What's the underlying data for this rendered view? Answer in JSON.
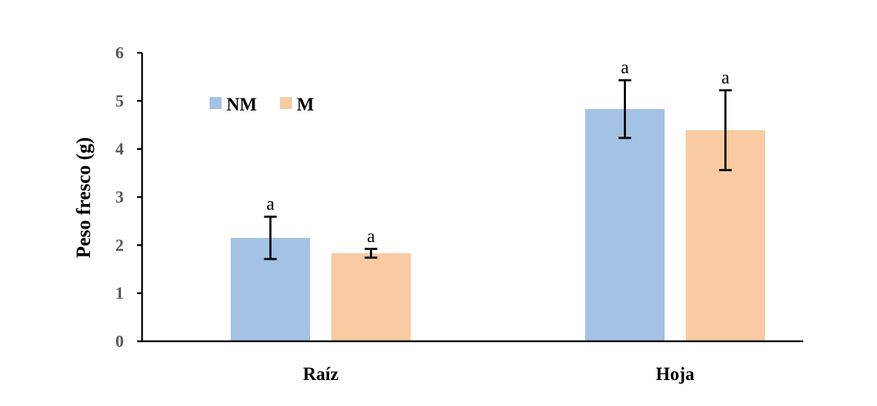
{
  "chart_data": {
    "type": "bar",
    "categories": [
      "Raíz",
      "Hoja"
    ],
    "series": [
      {
        "name": "NM",
        "color": "#A3C2E4",
        "values": [
          2.15,
          4.83
        ],
        "errors": [
          0.44,
          0.6
        ],
        "labels": [
          "a",
          "a"
        ]
      },
      {
        "name": "M",
        "color": "#F8CBA2",
        "values": [
          1.83,
          4.39
        ],
        "errors": [
          0.09,
          0.83
        ],
        "labels": [
          "a",
          "a"
        ]
      }
    ],
    "ylabel": "Peso fresco (g)",
    "ylim": [
      0,
      6
    ],
    "yticks": [
      0,
      1,
      2,
      3,
      4,
      5,
      6
    ],
    "grid": false,
    "legend": "top-left"
  }
}
